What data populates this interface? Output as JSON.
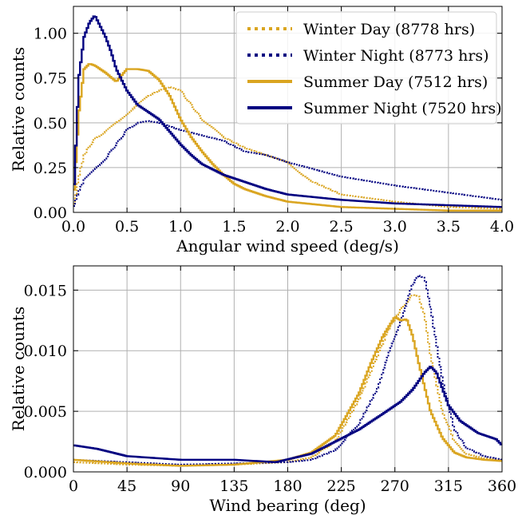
{
  "chart_data": [
    {
      "type": "line",
      "step": true,
      "xlabel": "Angular wind speed (deg/s)",
      "ylabel": "Relative counts",
      "xlim": [
        0,
        4.0
      ],
      "ylim": [
        0,
        1.15
      ],
      "xticks": [
        "0.0",
        "0.5",
        "1.0",
        "1.5",
        "2.0",
        "2.5",
        "3.0",
        "3.5",
        "4.0"
      ],
      "yticks": [
        "0.00",
        "0.25",
        "0.50",
        "0.75",
        "1.00"
      ],
      "grid": true,
      "legend": "top-right",
      "series": [
        {
          "name": "Winter Day (8778 hrs)",
          "color": "#DAA520",
          "style": "dotted",
          "x": [
            0.0,
            0.05,
            0.1,
            0.15,
            0.2,
            0.3,
            0.4,
            0.5,
            0.6,
            0.7,
            0.8,
            0.9,
            1.0,
            1.1,
            1.2,
            1.4,
            1.6,
            1.8,
            2.0,
            2.2,
            2.5,
            3.0,
            3.5,
            4.0
          ],
          "y": [
            0.02,
            0.2,
            0.32,
            0.37,
            0.41,
            0.45,
            0.5,
            0.55,
            0.6,
            0.65,
            0.68,
            0.7,
            0.68,
            0.6,
            0.52,
            0.42,
            0.36,
            0.32,
            0.28,
            0.18,
            0.1,
            0.06,
            0.03,
            0.02
          ]
        },
        {
          "name": "Winter Night (8773 hrs)",
          "color": "#000080",
          "style": "dotted",
          "x": [
            0.0,
            0.05,
            0.1,
            0.2,
            0.3,
            0.4,
            0.5,
            0.6,
            0.7,
            0.8,
            0.9,
            1.0,
            1.2,
            1.4,
            1.6,
            1.8,
            2.0,
            2.5,
            3.0,
            3.5,
            4.0
          ],
          "y": [
            0.02,
            0.12,
            0.18,
            0.24,
            0.3,
            0.38,
            0.46,
            0.5,
            0.51,
            0.5,
            0.48,
            0.46,
            0.43,
            0.4,
            0.34,
            0.32,
            0.28,
            0.2,
            0.15,
            0.11,
            0.07
          ]
        },
        {
          "name": "Summer Day (7512 hrs)",
          "color": "#DAA520",
          "style": "solid",
          "x": [
            0.0,
            0.05,
            0.1,
            0.15,
            0.2,
            0.3,
            0.4,
            0.5,
            0.6,
            0.7,
            0.8,
            0.9,
            1.0,
            1.1,
            1.2,
            1.3,
            1.4,
            1.5,
            1.6,
            1.8,
            2.0,
            2.5,
            3.0,
            3.5,
            4.0
          ],
          "y": [
            0.05,
            0.55,
            0.8,
            0.83,
            0.82,
            0.78,
            0.73,
            0.8,
            0.8,
            0.79,
            0.74,
            0.65,
            0.52,
            0.42,
            0.34,
            0.27,
            0.21,
            0.16,
            0.13,
            0.09,
            0.06,
            0.03,
            0.02,
            0.01,
            0.01
          ]
        },
        {
          "name": "Summer Night (7520 hrs)",
          "color": "#000080",
          "style": "solid",
          "x": [
            0.0,
            0.05,
            0.1,
            0.15,
            0.2,
            0.25,
            0.3,
            0.35,
            0.4,
            0.5,
            0.6,
            0.7,
            0.8,
            0.9,
            1.0,
            1.1,
            1.2,
            1.4,
            1.6,
            1.8,
            2.0,
            2.5,
            3.0,
            3.5,
            4.0
          ],
          "y": [
            0.05,
            0.75,
            0.98,
            1.06,
            1.1,
            1.04,
            0.98,
            0.9,
            0.8,
            0.68,
            0.6,
            0.56,
            0.52,
            0.45,
            0.38,
            0.32,
            0.27,
            0.21,
            0.17,
            0.13,
            0.1,
            0.07,
            0.05,
            0.04,
            0.03
          ]
        }
      ]
    },
    {
      "type": "line",
      "step": true,
      "xlabel": "Wind bearing (deg)",
      "ylabel": "Relative counts",
      "xlim": [
        0,
        360
      ],
      "ylim": [
        0,
        0.017
      ],
      "xticks": [
        "0",
        "45",
        "90",
        "135",
        "180",
        "225",
        "270",
        "315",
        "360"
      ],
      "yticks": [
        "0.000",
        "0.005",
        "0.010",
        "0.015"
      ],
      "grid": true,
      "series": [
        {
          "name": "Winter Day (8778 hrs)",
          "color": "#DAA520",
          "style": "dotted",
          "x": [
            0,
            45,
            90,
            135,
            180,
            200,
            220,
            240,
            255,
            265,
            275,
            285,
            290,
            295,
            300,
            310,
            320,
            330,
            345,
            360
          ],
          "y": [
            0.0008,
            0.0006,
            0.0005,
            0.0006,
            0.0008,
            0.0012,
            0.0025,
            0.006,
            0.0095,
            0.0118,
            0.0134,
            0.0146,
            0.0145,
            0.0128,
            0.0095,
            0.005,
            0.0025,
            0.0015,
            0.0011,
            0.001
          ]
        },
        {
          "name": "Winter Night (8773 hrs)",
          "color": "#000080",
          "style": "dotted",
          "x": [
            0,
            45,
            90,
            135,
            180,
            200,
            220,
            240,
            255,
            265,
            275,
            285,
            290,
            295,
            300,
            310,
            320,
            330,
            345,
            360
          ],
          "y": [
            0.001,
            0.0008,
            0.0006,
            0.0007,
            0.0008,
            0.001,
            0.0018,
            0.004,
            0.0068,
            0.0098,
            0.0125,
            0.0155,
            0.0162,
            0.016,
            0.0135,
            0.0075,
            0.0035,
            0.002,
            0.0013,
            0.001
          ]
        },
        {
          "name": "Summer Day (7512 hrs)",
          "color": "#DAA520",
          "style": "solid",
          "x": [
            0,
            45,
            90,
            135,
            180,
            200,
            220,
            240,
            250,
            260,
            270,
            275,
            280,
            285,
            290,
            300,
            310,
            320,
            330,
            345,
            360
          ],
          "y": [
            0.001,
            0.0007,
            0.0005,
            0.0006,
            0.001,
            0.0016,
            0.003,
            0.0065,
            0.009,
            0.0112,
            0.0128,
            0.0125,
            0.0126,
            0.0112,
            0.009,
            0.005,
            0.0028,
            0.0016,
            0.0012,
            0.001,
            0.0009
          ]
        },
        {
          "name": "Summer Night (7520 hrs)",
          "color": "#000080",
          "style": "solid",
          "x": [
            0,
            20,
            45,
            90,
            135,
            170,
            200,
            220,
            240,
            260,
            275,
            285,
            295,
            300,
            305,
            315,
            325,
            340,
            355,
            360
          ],
          "y": [
            0.0022,
            0.0019,
            0.0013,
            0.001,
            0.001,
            0.0008,
            0.0015,
            0.0025,
            0.0035,
            0.0048,
            0.0058,
            0.0068,
            0.0082,
            0.0087,
            0.0082,
            0.0055,
            0.0042,
            0.0032,
            0.0027,
            0.0022
          ]
        }
      ]
    }
  ]
}
